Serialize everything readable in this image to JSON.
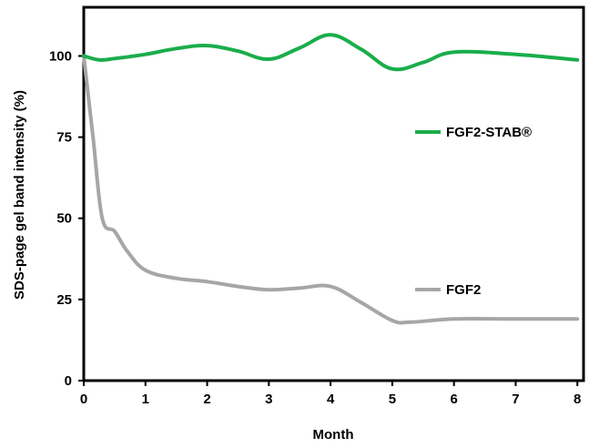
{
  "chart_data": {
    "type": "line",
    "title": "",
    "xlabel": "Month",
    "ylabel": "SDS-page gel band intensity (%)",
    "xlim": [
      0,
      8.1
    ],
    "ylim": [
      0,
      115
    ],
    "xticks": [
      0,
      1,
      2,
      3,
      4,
      5,
      6,
      7,
      8
    ],
    "yticks": [
      0,
      25,
      50,
      75,
      100
    ],
    "grid": false,
    "legend_placement": "inline labels at right",
    "series": [
      {
        "name": "FGF2-STAB®",
        "color": "#1aad4b",
        "x": [
          0,
          0.25,
          0.5,
          1,
          1.5,
          2,
          2.5,
          3,
          3.5,
          4,
          4.5,
          5,
          5.5,
          6,
          7,
          8
        ],
        "values": [
          100,
          98.8,
          99.2,
          100.5,
          102.3,
          103.2,
          101.5,
          99.0,
          102.5,
          106.5,
          102.0,
          96.0,
          98.0,
          101.2,
          100.5,
          98.8
        ]
      },
      {
        "name": "FGF2",
        "color": "#a6a6a6",
        "x": [
          0,
          0.15,
          0.3,
          0.5,
          0.7,
          1,
          1.5,
          2,
          2.5,
          3,
          3.5,
          4,
          4.5,
          5,
          5.3,
          6,
          7,
          8
        ],
        "values": [
          100,
          75,
          50,
          46,
          40,
          34,
          31.5,
          30.5,
          29,
          28,
          28.5,
          29,
          24,
          18.5,
          18,
          19,
          19,
          19
        ]
      }
    ]
  }
}
